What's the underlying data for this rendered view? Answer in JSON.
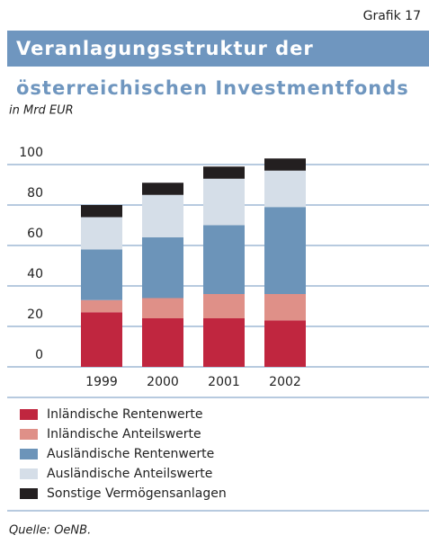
{
  "chart_data": {
    "type": "stacked_bar",
    "label": "Grafik 17",
    "title": [
      "Veranlagungsstruktur der",
      "österreichischen Investmentfonds"
    ],
    "subtitle": "in Mrd EUR",
    "source": "Quelle: OeNB.",
    "categories": [
      "1999",
      "2000",
      "2001",
      "2002"
    ],
    "series": [
      {
        "name": "Inländische Rentenwerte",
        "color": "#c0263f",
        "values": [
          27,
          24,
          24,
          23
        ]
      },
      {
        "name": "Inländische Anteilswerte",
        "color": "#df9088",
        "values": [
          6,
          10,
          12,
          13
        ]
      },
      {
        "name": "Ausländische Rentenwerte",
        "color": "#6c94b9",
        "values": [
          25,
          30,
          34,
          43
        ]
      },
      {
        "name": "Ausländische Anteilswerte",
        "color": "#d5dee8",
        "values": [
          16,
          21,
          23,
          18
        ]
      },
      {
        "name": "Sonstige Vermögensanlagen",
        "color": "#231f20",
        "values": [
          6,
          6,
          6,
          6
        ]
      }
    ],
    "ylim": [
      0,
      100
    ],
    "yticks": [
      0,
      20,
      40,
      60,
      80,
      100
    ],
    "grid": true
  }
}
